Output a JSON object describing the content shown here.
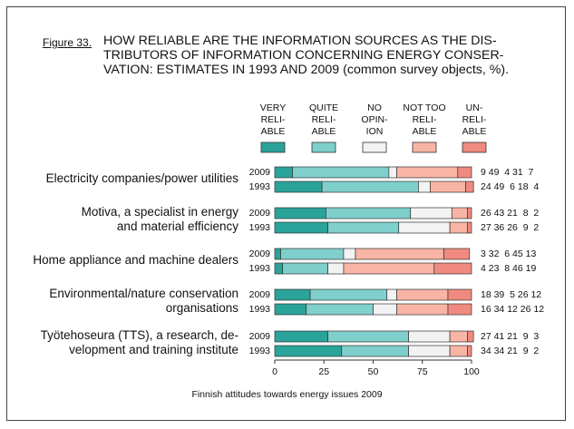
{
  "figure_label": "Figure 33.",
  "footer": "Finnish attitudes towards energy issues 2009",
  "chart_data": {
    "type": "bar",
    "orientation": "horizontal",
    "stacked": true,
    "percent": true,
    "title": "HOW RELIABLE ARE THE INFORMATION SOURCES AS THE DISTRIBUTORS OF INFORMATION CONCERNING ENERGY CONSERVATION: ESTIMATES IN 1993 AND 2009 (common survey objects, %).",
    "title_lines": [
      "HOW RELIABLE ARE THE INFORMATION SOURCES AS THE DIS-",
      "TRIBUTORS OF INFORMATION CONCERNING ENERGY CONSER-",
      "VATION: ESTIMATES IN 1993 AND 2009 (common survey objects, %)."
    ],
    "xlim": [
      0,
      100
    ],
    "xticks": [
      "0",
      "25",
      "50",
      "75",
      "100"
    ],
    "series": [
      {
        "name": "VERY\nRELI-\nABLE",
        "color": "#2aa39a"
      },
      {
        "name": "QUITE\nRELI-\nABLE",
        "color": "#7fcfcc"
      },
      {
        "name": "NO\nOPIN-\nION",
        "color": "#f2f2f2"
      },
      {
        "name": "NOT TOO\nRELI-\nABLE",
        "color": "#f8b4a4"
      },
      {
        "name": "UN-\nRELI-\nABLE",
        "color": "#f08a80"
      }
    ],
    "groups": [
      {
        "category": "Electricity companies/power utilities",
        "rows": [
          {
            "year": "2009",
            "values": [
              9,
              49,
              4,
              31,
              7
            ],
            "label": "9 49  4 31  7"
          },
          {
            "year": "1993",
            "values": [
              24,
              49,
              6,
              18,
              4
            ],
            "label": "24 49  6 18  4"
          }
        ]
      },
      {
        "category": "Motiva, a specialist in energy\nand material efficiency",
        "rows": [
          {
            "year": "2009",
            "values": [
              26,
              43,
              21,
              8,
              2
            ],
            "label": "26 43 21  8  2"
          },
          {
            "year": "1993",
            "values": [
              27,
              36,
              26,
              9,
              2
            ],
            "label": "27 36 26  9  2"
          }
        ]
      },
      {
        "category": "Home appliance and machine dealers",
        "rows": [
          {
            "year": "2009",
            "values": [
              3,
              32,
              6,
              45,
              13
            ],
            "label": "3 32  6 45 13"
          },
          {
            "year": "1993",
            "values": [
              4,
              23,
              8,
              46,
              19
            ],
            "label": "4 23  8 46 19"
          }
        ]
      },
      {
        "category": "Environmental/nature conservation\norganisations",
        "rows": [
          {
            "year": "2009",
            "values": [
              18,
              39,
              5,
              26,
              12
            ],
            "label": "18 39  5 26 12"
          },
          {
            "year": "1993",
            "values": [
              16,
              34,
              12,
              26,
              12
            ],
            "label": "16 34 12 26 12"
          }
        ]
      },
      {
        "category": "Työtehoseura (TTS), a research, de-\nvelopment and training institute",
        "rows": [
          {
            "year": "2009",
            "values": [
              27,
              41,
              21,
              9,
              3
            ],
            "label": "27 41 21  9  3"
          },
          {
            "year": "1993",
            "values": [
              34,
              34,
              21,
              9,
              2
            ],
            "label": "34 34 21  9  2"
          }
        ]
      }
    ]
  }
}
